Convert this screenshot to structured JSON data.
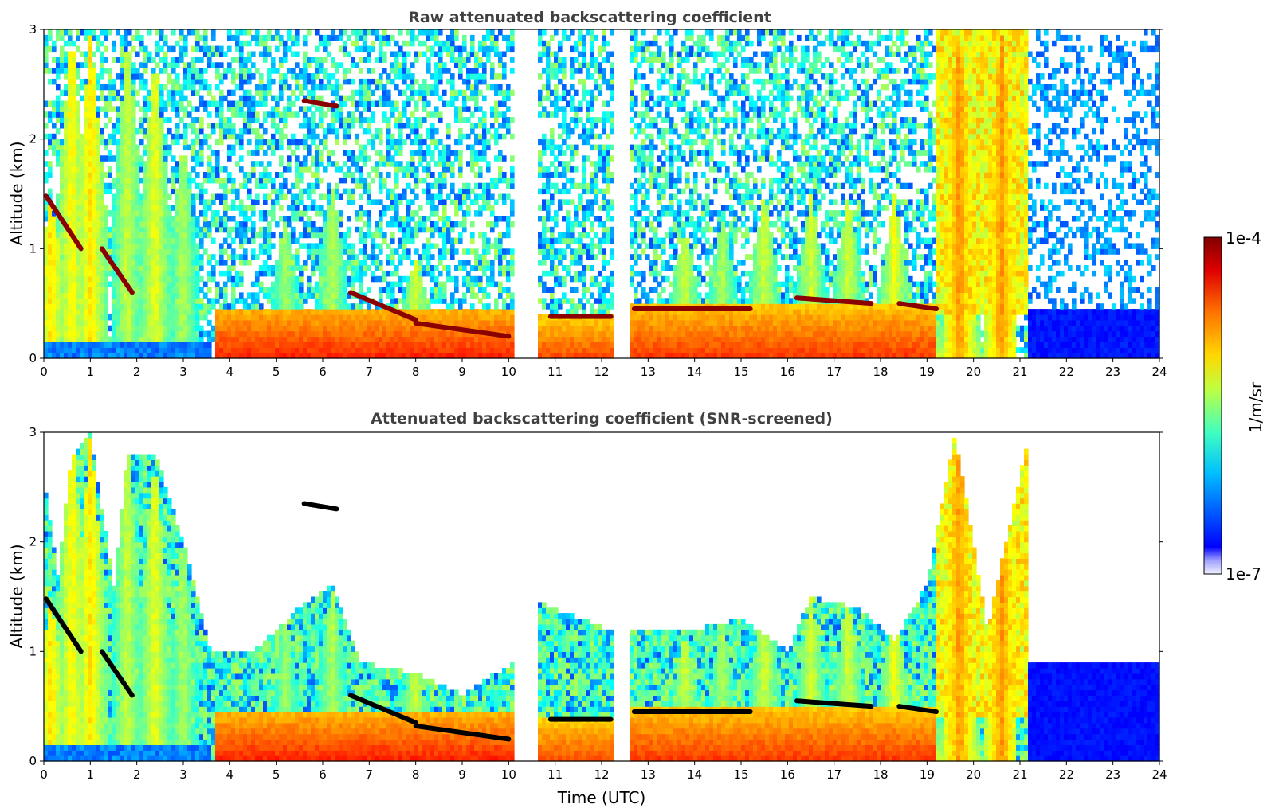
{
  "chart_data": [
    {
      "type": "heatmap",
      "title": "Raw attenuated backscattering coefficient",
      "xlabel": "",
      "ylabel": "Altitude (km)",
      "xlim": [
        0,
        24
      ],
      "ylim": [
        0,
        3
      ],
      "xticks": [
        "0",
        "1",
        "2",
        "3",
        "4",
        "5",
        "6",
        "7",
        "8",
        "9",
        "10",
        "11",
        "12",
        "13",
        "14",
        "15",
        "16",
        "17",
        "18",
        "19",
        "20",
        "21",
        "22",
        "23",
        "24"
      ],
      "yticks": [
        "0",
        "1",
        "2",
        "3"
      ],
      "missing_data_gaps_utc": [
        [
          10.15,
          10.6
        ],
        [
          12.25,
          12.6
        ]
      ],
      "fog_layers": [
        {
          "t0": 3.65,
          "t1": 10.15,
          "top": 0.45,
          "level": 0.82
        },
        {
          "t0": 10.6,
          "t1": 12.25,
          "top": 0.42,
          "level": 0.78
        },
        {
          "t0": 12.6,
          "t1": 19.2,
          "top": 0.5,
          "level": 0.8
        },
        {
          "t0": 19.2,
          "t1": 20.1,
          "top": 0.45,
          "level": 0.55
        }
      ],
      "plumes": [
        {
          "t": 0.15,
          "top": 1.45,
          "level": 0.62
        },
        {
          "t": 0.6,
          "top": 3.0,
          "level": 0.6
        },
        {
          "t": 1.0,
          "top": 3.0,
          "level": 0.62
        },
        {
          "t": 1.8,
          "top": 3.0,
          "level": 0.55
        },
        {
          "t": 2.4,
          "top": 2.8,
          "level": 0.58
        },
        {
          "t": 3.0,
          "top": 2.0,
          "level": 0.52
        },
        {
          "t": 5.2,
          "top": 1.3,
          "level": 0.5
        },
        {
          "t": 6.2,
          "top": 1.6,
          "level": 0.52
        },
        {
          "t": 8.0,
          "top": 0.9,
          "level": 0.55
        },
        {
          "t": 13.8,
          "top": 1.2,
          "level": 0.55
        },
        {
          "t": 14.6,
          "top": 1.3,
          "level": 0.52
        },
        {
          "t": 15.5,
          "top": 1.5,
          "level": 0.55
        },
        {
          "t": 16.5,
          "top": 1.5,
          "level": 0.55
        },
        {
          "t": 17.3,
          "top": 1.5,
          "level": 0.55
        },
        {
          "t": 18.3,
          "top": 1.5,
          "level": 0.58
        },
        {
          "t": 19.7,
          "top": 3.0,
          "level": 0.7
        },
        {
          "t": 20.6,
          "top": 3.0,
          "level": 0.7
        }
      ],
      "saturated_cloud_segments": [
        {
          "t0": 0.05,
          "z0": 1.48,
          "t1": 0.8,
          "z1": 1.0
        },
        {
          "t0": 1.25,
          "z0": 1.0,
          "t1": 1.9,
          "z1": 0.6
        },
        {
          "t0": 5.6,
          "z0": 2.35,
          "t1": 6.3,
          "z1": 2.3
        },
        {
          "t0": 6.6,
          "z0": 0.6,
          "t1": 8.0,
          "z1": 0.35
        },
        {
          "t0": 8.0,
          "z0": 0.32,
          "t1": 10.0,
          "z1": 0.2
        },
        {
          "t0": 10.9,
          "z0": 0.38,
          "t1": 12.2,
          "z1": 0.38
        },
        {
          "t0": 12.7,
          "z0": 0.45,
          "t1": 15.2,
          "z1": 0.45
        },
        {
          "t0": 16.2,
          "z0": 0.55,
          "t1": 17.8,
          "z1": 0.5
        },
        {
          "t0": 18.4,
          "z0": 0.5,
          "t1": 19.2,
          "z1": 0.45
        }
      ],
      "clear_sky_after_utc": 20.3
    },
    {
      "type": "heatmap",
      "title": "Attenuated backscattering coefficient (SNR-screened)",
      "xlabel": "Time (UTC)",
      "ylabel": "Altitude (km)",
      "xlim": [
        0,
        24
      ],
      "ylim": [
        0,
        3
      ],
      "xticks": [
        "0",
        "1",
        "2",
        "3",
        "4",
        "5",
        "6",
        "7",
        "8",
        "9",
        "10",
        "11",
        "12",
        "13",
        "14",
        "15",
        "16",
        "17",
        "18",
        "19",
        "20",
        "21",
        "22",
        "23",
        "24"
      ],
      "yticks": [
        "0",
        "1",
        "2",
        "3"
      ],
      "missing_data_gaps_utc": [
        [
          10.15,
          10.6
        ],
        [
          12.25,
          12.6
        ]
      ],
      "screened_blue_layer": {
        "t0": 20.3,
        "t1": 24,
        "top": 0.9
      },
      "signal_top_km": [
        {
          "t": 0.0,
          "top": 2.6
        },
        {
          "t": 0.3,
          "top": 1.7
        },
        {
          "t": 0.6,
          "top": 2.8
        },
        {
          "t": 1.0,
          "top": 3.0
        },
        {
          "t": 1.5,
          "top": 1.6
        },
        {
          "t": 1.8,
          "top": 2.8
        },
        {
          "t": 2.4,
          "top": 2.8
        },
        {
          "t": 3.0,
          "top": 2.0
        },
        {
          "t": 3.6,
          "top": 1.0
        },
        {
          "t": 4.5,
          "top": 1.0
        },
        {
          "t": 5.5,
          "top": 1.4
        },
        {
          "t": 6.2,
          "top": 1.6
        },
        {
          "t": 6.8,
          "top": 0.9
        },
        {
          "t": 8.0,
          "top": 0.8
        },
        {
          "t": 9.0,
          "top": 0.6
        },
        {
          "t": 10.1,
          "top": 0.9
        },
        {
          "t": 10.6,
          "top": 1.45
        },
        {
          "t": 12.2,
          "top": 1.2
        },
        {
          "t": 12.6,
          "top": 1.2
        },
        {
          "t": 14.0,
          "top": 1.2
        },
        {
          "t": 15.0,
          "top": 1.3
        },
        {
          "t": 16.0,
          "top": 1.0
        },
        {
          "t": 16.5,
          "top": 1.5
        },
        {
          "t": 17.5,
          "top": 1.4
        },
        {
          "t": 18.3,
          "top": 1.1
        },
        {
          "t": 19.0,
          "top": 1.6
        },
        {
          "t": 19.6,
          "top": 3.0
        },
        {
          "t": 21.2,
          "top": 3.0
        },
        {
          "t": 20.3,
          "top": 1.2
        }
      ]
    }
  ],
  "colorbar": {
    "label": "1/m/sr",
    "max_label": "1e-4",
    "min_label": "1e-7",
    "scale": "log",
    "colormap": "jet",
    "range": [
      1e-07,
      0.0001
    ]
  },
  "colors": {
    "missing_data": "#ffffff",
    "saturated_screened": "#000000",
    "title_text": "#404040"
  }
}
